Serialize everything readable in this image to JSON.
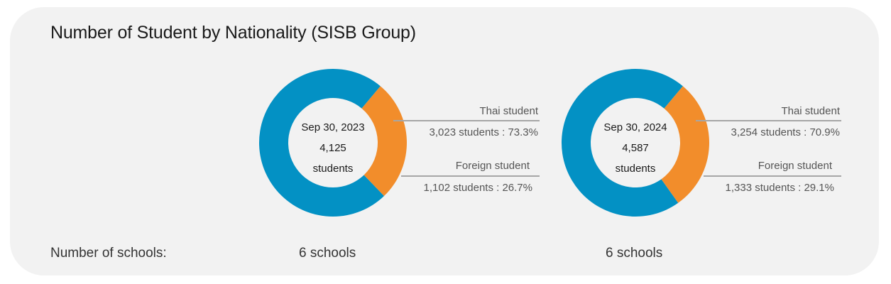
{
  "title": "Number of Student by Nationality (SISB Group)",
  "footer": {
    "label": "Number of schools:",
    "schools": [
      "6 schools",
      "6 schools"
    ]
  },
  "colors": {
    "thai": "#0391c4",
    "foreign": "#f28d2b",
    "card_bg": "#f2f2f2",
    "leader_line": "#a6a6a6"
  },
  "chart_data": [
    {
      "type": "pie",
      "date": "Sep 30, 2023",
      "total": "4,125",
      "total_unit": "students",
      "categories": [
        "Thai student",
        "Foreign student"
      ],
      "values": [
        3023,
        1102
      ],
      "percentages": [
        73.3,
        26.7
      ],
      "value_labels": [
        "3,023 students : 73.3%",
        "1,102 students : 26.7%"
      ]
    },
    {
      "type": "pie",
      "date": "Sep 30, 2024",
      "total": "4,587",
      "total_unit": "students",
      "categories": [
        "Thai student",
        "Foreign student"
      ],
      "values": [
        3254,
        1333
      ],
      "percentages": [
        70.9,
        29.1
      ],
      "value_labels": [
        "3,254 students : 70.9%",
        "1,333 students : 29.1%"
      ]
    }
  ]
}
